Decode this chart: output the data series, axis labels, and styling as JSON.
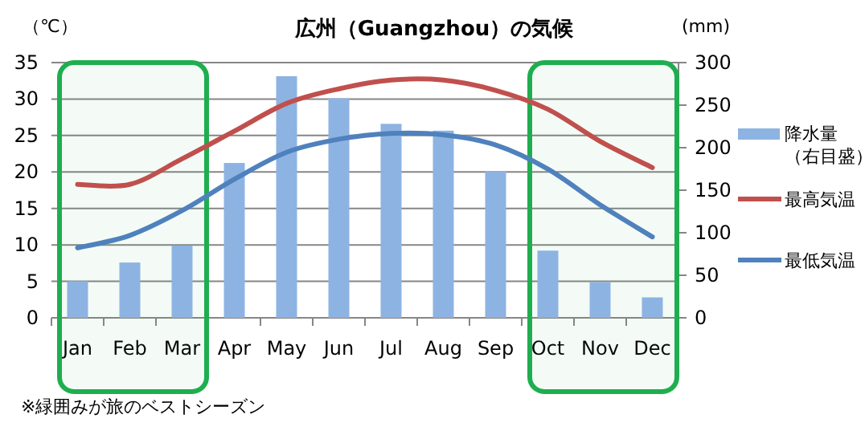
{
  "chart_data": {
    "type": "bar",
    "title": "広州（Guangzhou）の気候",
    "ylabel": "（℃）",
    "y2label": "(mm)",
    "categories": [
      "Jan",
      "Feb",
      "Mar",
      "Apr",
      "May",
      "Jun",
      "Jul",
      "Aug",
      "Sep",
      "Oct",
      "Nov",
      "Dec"
    ],
    "series": [
      {
        "name": "降水量（右目盛）",
        "axis": "y2",
        "color": "#8db3e2",
        "values": [
          43,
          65,
          85,
          182,
          284,
          258,
          228,
          220,
          172,
          79,
          42,
          24
        ]
      },
      {
        "name": "最高気温",
        "type": "line",
        "color": "#c0504d",
        "values": [
          18.3,
          18.3,
          21.8,
          25.6,
          29.4,
          31.4,
          32.6,
          32.6,
          31.2,
          28.6,
          24.2,
          20.6
        ]
      },
      {
        "name": "最低気温",
        "type": "line",
        "color": "#4f81bd",
        "values": [
          9.6,
          11.3,
          14.7,
          19.0,
          22.7,
          24.5,
          25.3,
          25.1,
          23.7,
          20.4,
          15.5,
          11.1
        ]
      }
    ],
    "ylim": [
      0,
      35
    ],
    "yticks": [
      0,
      5,
      10,
      15,
      20,
      25,
      30,
      35
    ],
    "y2lim": [
      0,
      300
    ],
    "y2ticks": [
      0,
      50,
      100,
      150,
      200,
      250,
      300
    ],
    "grid": "y",
    "legend": "right",
    "marker": "none",
    "line_style": "solid",
    "bands": [
      {
        "axis": "x",
        "from": "Jan",
        "to": "Mar",
        "color": "#1fae4f"
      },
      {
        "axis": "x",
        "from": "Oct",
        "to": "Dec",
        "color": "#1fae4f"
      }
    ],
    "annotations": [
      "※緑囲みが旅のベストシーズン"
    ]
  }
}
